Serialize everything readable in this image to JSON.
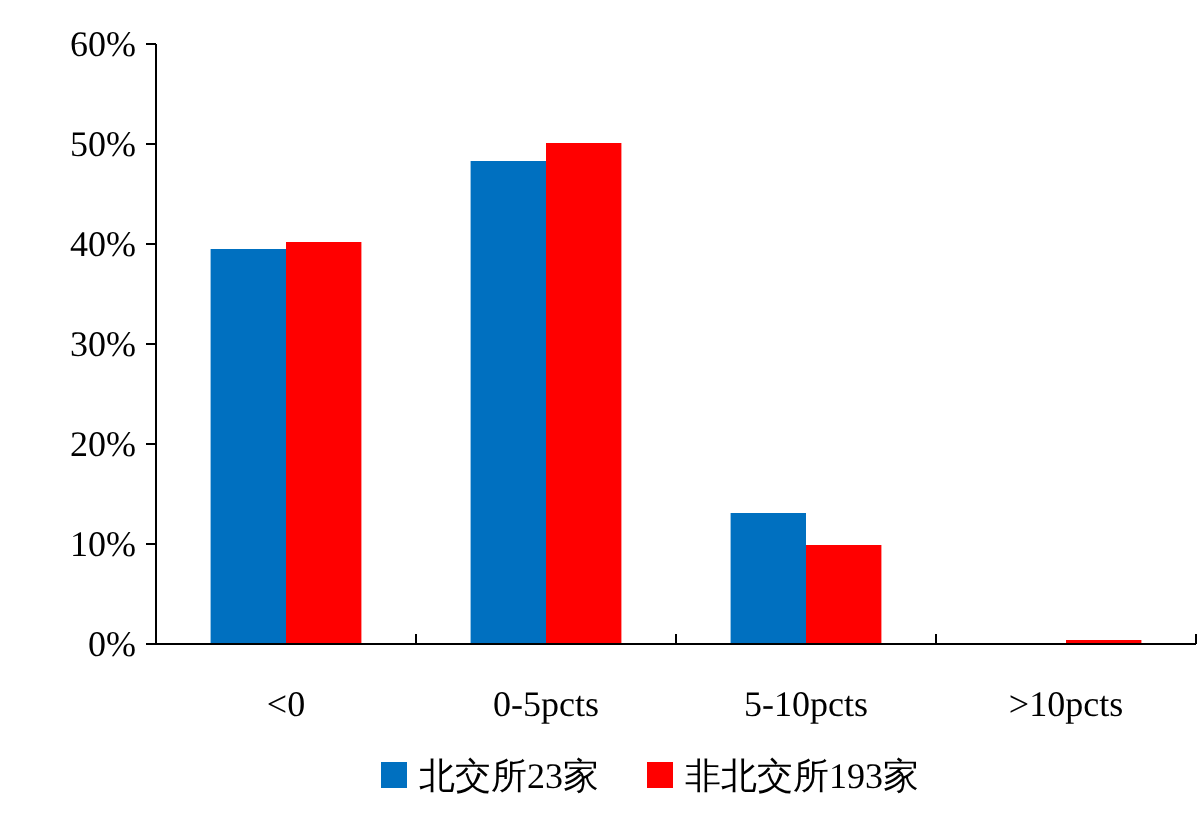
{
  "chart_data": {
    "type": "bar",
    "categories": [
      "<0",
      "0-5pcts",
      "5-10pcts",
      ">10pcts"
    ],
    "series": [
      {
        "name": "北交所23家",
        "color": "#0070c0",
        "values": [
          39.5,
          48.3,
          13.1,
          0
        ]
      },
      {
        "name": "非北交所193家",
        "color": "#ff0000",
        "values": [
          40.2,
          50.1,
          9.9,
          0.4
        ]
      }
    ],
    "ylim": [
      0,
      60
    ],
    "yticks": [
      {
        "value": 0,
        "label": "0%"
      },
      {
        "value": 10,
        "label": "10%"
      },
      {
        "value": 20,
        "label": "20%"
      },
      {
        "value": 30,
        "label": "30%"
      },
      {
        "value": 40,
        "label": "40%"
      },
      {
        "value": 50,
        "label": "50%"
      },
      {
        "value": 60,
        "label": "60%"
      }
    ],
    "legend": "bottom"
  }
}
